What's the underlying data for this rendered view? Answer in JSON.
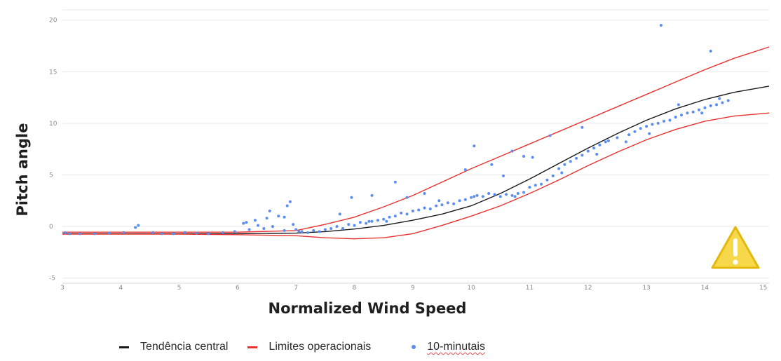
{
  "colors": {
    "trend": "#1a1a1a",
    "limits": "#e8322f",
    "points": "#5b8def",
    "warning_fill": "#f7d84a",
    "warning_stroke": "#e3b80f",
    "grid": "#e9e9e9"
  },
  "chart_data": {
    "type": "scatter",
    "xlabel": "Normalized Wind Speed",
    "ylabel": "Pitch angle",
    "xlim": [
      3,
      15.1
    ],
    "ylim": [
      -5.5,
      21
    ],
    "x_ticks": [
      "3",
      "4",
      "5",
      "6",
      "7",
      "8",
      "9",
      "10",
      "11",
      "12",
      "13",
      "14",
      "15"
    ],
    "y_ticks": [
      "-5",
      "0",
      "5",
      "10",
      "15",
      "20"
    ],
    "grid": "horizontal",
    "legend_position": "bottom",
    "series": [
      {
        "name": "Tendência central",
        "kind": "line",
        "color": "#1a1a1a",
        "x": [
          3.0,
          4.0,
          5.0,
          6.0,
          7.0,
          7.5,
          8.0,
          8.5,
          9.0,
          9.5,
          10.0,
          10.5,
          11.0,
          11.5,
          12.0,
          12.5,
          13.0,
          13.5,
          14.0,
          14.5,
          15.1
        ],
        "y": [
          -0.7,
          -0.7,
          -0.7,
          -0.7,
          -0.65,
          -0.5,
          -0.25,
          0.1,
          0.6,
          1.2,
          2.0,
          3.2,
          4.6,
          6.1,
          7.6,
          9.0,
          10.3,
          11.4,
          12.3,
          13.0,
          13.6
        ]
      },
      {
        "name": "Limites operacionais",
        "kind": "line",
        "color": "#e8322f",
        "x": [
          3.0,
          4.0,
          5.0,
          6.0,
          7.0,
          7.5,
          8.0,
          8.5,
          9.0,
          9.5,
          10.0,
          10.5,
          11.0,
          11.5,
          12.0,
          12.5,
          13.0,
          13.5,
          14.0,
          14.5,
          15.1
        ],
        "y": [
          -0.55,
          -0.55,
          -0.55,
          -0.55,
          -0.4,
          0.2,
          0.9,
          1.9,
          3.0,
          4.3,
          5.6,
          6.8,
          8.0,
          9.2,
          10.4,
          11.6,
          12.8,
          14.0,
          15.2,
          16.3,
          17.4
        ]
      },
      {
        "name": "Limites operacionais",
        "kind": "line",
        "color": "#e8322f",
        "x": [
          3.0,
          4.0,
          5.0,
          6.0,
          7.0,
          7.5,
          8.0,
          8.5,
          9.0,
          9.5,
          10.0,
          10.5,
          11.0,
          11.5,
          12.0,
          12.5,
          13.0,
          13.5,
          14.0,
          14.5,
          15.1
        ],
        "y": [
          -0.75,
          -0.75,
          -0.75,
          -0.8,
          -0.9,
          -1.1,
          -1.2,
          -1.1,
          -0.7,
          0.1,
          1.0,
          2.0,
          3.2,
          4.5,
          5.9,
          7.2,
          8.4,
          9.4,
          10.2,
          10.7,
          11.0
        ]
      },
      {
        "name": "10-minutais",
        "kind": "scatter",
        "color": "#5b8def",
        "x": [
          3.05,
          3.12,
          3.3,
          3.55,
          3.8,
          4.05,
          4.25,
          4.3,
          4.55,
          4.7,
          4.9,
          5.1,
          5.3,
          5.5,
          5.75,
          5.95,
          6.1,
          6.2,
          6.3,
          6.35,
          6.45,
          6.5,
          6.6,
          6.7,
          6.8,
          6.85,
          6.9,
          6.95,
          7.0,
          7.05,
          7.1,
          7.2,
          7.3,
          7.4,
          7.5,
          7.6,
          7.7,
          7.8,
          7.9,
          8.0,
          8.1,
          8.2,
          8.3,
          8.4,
          8.5,
          8.55,
          8.6,
          8.7,
          8.8,
          8.9,
          9.0,
          9.1,
          9.2,
          9.3,
          9.4,
          9.5,
          9.6,
          9.7,
          9.8,
          9.9,
          10.0,
          10.05,
          10.1,
          10.2,
          10.3,
          10.4,
          10.5,
          10.6,
          10.7,
          10.75,
          10.8,
          10.9,
          11.0,
          11.1,
          11.2,
          11.3,
          11.4,
          11.5,
          11.6,
          11.7,
          11.8,
          11.9,
          12.0,
          12.1,
          12.2,
          12.3,
          12.5,
          12.7,
          12.8,
          12.9,
          13.0,
          13.1,
          13.2,
          13.3,
          13.4,
          13.5,
          13.6,
          13.7,
          13.8,
          13.9,
          14.0,
          14.1,
          14.2,
          14.3,
          14.4,
          13.25,
          14.1,
          7.95,
          8.3,
          8.7,
          10.05,
          10.7,
          10.9,
          6.15,
          6.55,
          6.8,
          7.75,
          8.25,
          8.9,
          9.2,
          9.45,
          9.9,
          10.35,
          10.55,
          11.05,
          11.35,
          11.55,
          11.9,
          12.15,
          12.35,
          12.65,
          13.05,
          13.55,
          13.95,
          14.25
        ],
        "y": [
          -0.6,
          -0.7,
          -0.7,
          -0.7,
          -0.65,
          -0.6,
          -0.1,
          0.1,
          -0.6,
          -0.7,
          -0.7,
          -0.6,
          -0.65,
          -0.7,
          -0.6,
          -0.5,
          0.3,
          -0.3,
          0.6,
          0.1,
          -0.2,
          0.8,
          0.0,
          1.0,
          -0.4,
          2.0,
          2.4,
          0.2,
          -0.3,
          -0.5,
          -0.5,
          -0.6,
          -0.4,
          -0.5,
          -0.3,
          -0.2,
          0.0,
          -0.2,
          0.2,
          0.1,
          0.4,
          0.3,
          0.5,
          0.6,
          0.7,
          0.5,
          0.9,
          1.0,
          1.3,
          1.2,
          1.5,
          1.6,
          1.8,
          1.7,
          2.0,
          2.1,
          2.3,
          2.2,
          2.5,
          2.6,
          2.8,
          2.9,
          3.0,
          2.9,
          3.2,
          3.1,
          2.9,
          3.1,
          3.0,
          2.9,
          3.2,
          3.3,
          3.8,
          4.0,
          4.1,
          4.5,
          4.9,
          5.6,
          6.0,
          6.3,
          6.6,
          6.9,
          7.3,
          7.6,
          7.9,
          8.2,
          8.6,
          8.9,
          9.2,
          9.5,
          9.7,
          9.9,
          10.0,
          10.2,
          10.3,
          10.6,
          10.8,
          11.0,
          11.1,
          11.3,
          11.5,
          11.7,
          11.8,
          12.0,
          12.2,
          19.5,
          17.0,
          2.8,
          3.0,
          4.3,
          7.8,
          7.3,
          6.8,
          0.4,
          1.5,
          0.9,
          1.2,
          0.5,
          2.8,
          3.2,
          2.5,
          5.5,
          6.0,
          4.9,
          6.7,
          8.8,
          5.2,
          9.6,
          7.0,
          8.3,
          8.2,
          9.0,
          11.8,
          11.0,
          12.4
        ]
      }
    ]
  },
  "legend": {
    "items": [
      {
        "label": "Tendência central",
        "color": "#1a1a1a"
      },
      {
        "label": "Limites operacionais",
        "color": "#e8322f"
      },
      {
        "label": "10-minutais",
        "color": "#5b8def"
      }
    ]
  },
  "warning": {
    "icon": "warning-icon"
  }
}
